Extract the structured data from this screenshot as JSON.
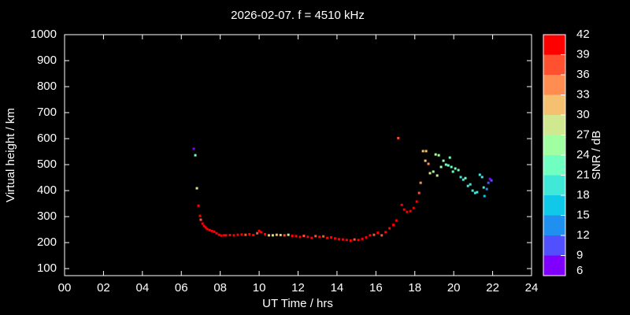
{
  "chart_data": {
    "type": "scatter",
    "title": "2026-02-07. f = 4510 kHz",
    "xlabel": "UT Time / hrs",
    "ylabel": "Virtual height / km",
    "xlim": [
      0,
      24
    ],
    "ylim": [
      73,
      1000
    ],
    "xticks": [
      {
        "value": 0,
        "label": "00"
      },
      {
        "value": 2,
        "label": "02"
      },
      {
        "value": 4,
        "label": "04"
      },
      {
        "value": 6,
        "label": "06"
      },
      {
        "value": 8,
        "label": "08"
      },
      10,
      12,
      14,
      16,
      18,
      20,
      22,
      24
    ],
    "yticks": [
      100,
      200,
      300,
      400,
      500,
      600,
      700,
      800,
      900,
      1000
    ],
    "x": [
      6.64,
      6.72,
      6.8,
      6.88,
      6.96,
      7.0,
      7.09,
      7.17,
      7.25,
      7.33,
      7.45,
      7.57,
      7.69,
      7.81,
      7.94,
      8.06,
      8.2,
      8.3,
      8.5,
      8.7,
      8.9,
      9.1,
      9.3,
      9.5,
      9.7,
      9.9,
      10.0,
      10.1,
      10.3,
      10.5,
      10.7,
      10.9,
      11.1,
      11.3,
      11.5,
      11.7,
      11.9,
      12.1,
      12.3,
      12.5,
      12.7,
      12.9,
      13.1,
      13.3,
      13.5,
      13.7,
      13.9,
      14.1,
      14.3,
      14.5,
      14.7,
      14.9,
      15.1,
      15.3,
      15.5,
      15.7,
      15.9,
      16.1,
      16.3,
      16.5,
      16.7,
      16.9,
      17.05,
      17.15,
      17.33,
      17.45,
      17.6,
      17.77,
      17.94,
      18.1,
      18.22,
      18.3,
      18.42,
      18.58,
      18.54,
      18.7,
      18.78,
      18.95,
      19.07,
      19.23,
      19.15,
      19.35,
      19.47,
      19.6,
      19.72,
      19.8,
      19.88,
      19.96,
      20.08,
      20.24,
      20.36,
      20.49,
      20.6,
      20.73,
      20.85,
      20.97,
      21.1,
      21.2,
      21.34,
      21.46,
      21.54,
      21.58,
      21.7,
      21.78,
      21.86,
      21.94
    ],
    "y": [
      561,
      536,
      409,
      342,
      303,
      288,
      273,
      264,
      258,
      252,
      248,
      245,
      242,
      236,
      230,
      227,
      228,
      228,
      229,
      228,
      230,
      231,
      230,
      232,
      229,
      236,
      245,
      240,
      232,
      228,
      228,
      230,
      229,
      228,
      230,
      226,
      225,
      222,
      226,
      222,
      218,
      225,
      222,
      224,
      218,
      220,
      216,
      213,
      212,
      210,
      208,
      212,
      210,
      214,
      220,
      228,
      230,
      238,
      228,
      240,
      255,
      268,
      285,
      602,
      345,
      327,
      318,
      321,
      333,
      358,
      391,
      430,
      552,
      552,
      515,
      503,
      467,
      473,
      539,
      536,
      458,
      491,
      515,
      500,
      497,
      527,
      491,
      473,
      485,
      479,
      452,
      442,
      448,
      418,
      424,
      400,
      391,
      394,
      461,
      452,
      412,
      379,
      406,
      430,
      445,
      439
    ],
    "snr": [
      7,
      22,
      28,
      40,
      39,
      37,
      40,
      40,
      40,
      40,
      40,
      40,
      40,
      40,
      40,
      40,
      40,
      40,
      40,
      40,
      40,
      40,
      38,
      40,
      39,
      37,
      40,
      39,
      40,
      30,
      28,
      30,
      32,
      38,
      29,
      40,
      39,
      40,
      38,
      40,
      40,
      36,
      40,
      38,
      40,
      39,
      40,
      40,
      40,
      40,
      40,
      38,
      40,
      40,
      39,
      40,
      37,
      40,
      36,
      40,
      40,
      40,
      40,
      37,
      40,
      40,
      40,
      40,
      40,
      39,
      37,
      34,
      32,
      31,
      30,
      33,
      28,
      26,
      26,
      26,
      27,
      25,
      24,
      23,
      22,
      22,
      21,
      23,
      22,
      21,
      20,
      19,
      21,
      20,
      19,
      20,
      19,
      18,
      19,
      20,
      18,
      17,
      14,
      11,
      8,
      10
    ],
    "colorbar": {
      "label": "SNR / dB",
      "lim": [
        6,
        42
      ],
      "ticks": [
        42,
        39,
        36,
        33,
        30,
        27,
        24,
        21,
        18,
        15,
        12,
        9,
        6
      ],
      "colors": [
        "#8000ff",
        "#5050ff",
        "#2090f0",
        "#10c8e8",
        "#40e8d8",
        "#70ffc0",
        "#a0ffa0",
        "#d0e890",
        "#f5c070",
        "#ff8c50",
        "#ff5030",
        "#ff0000"
      ]
    }
  }
}
